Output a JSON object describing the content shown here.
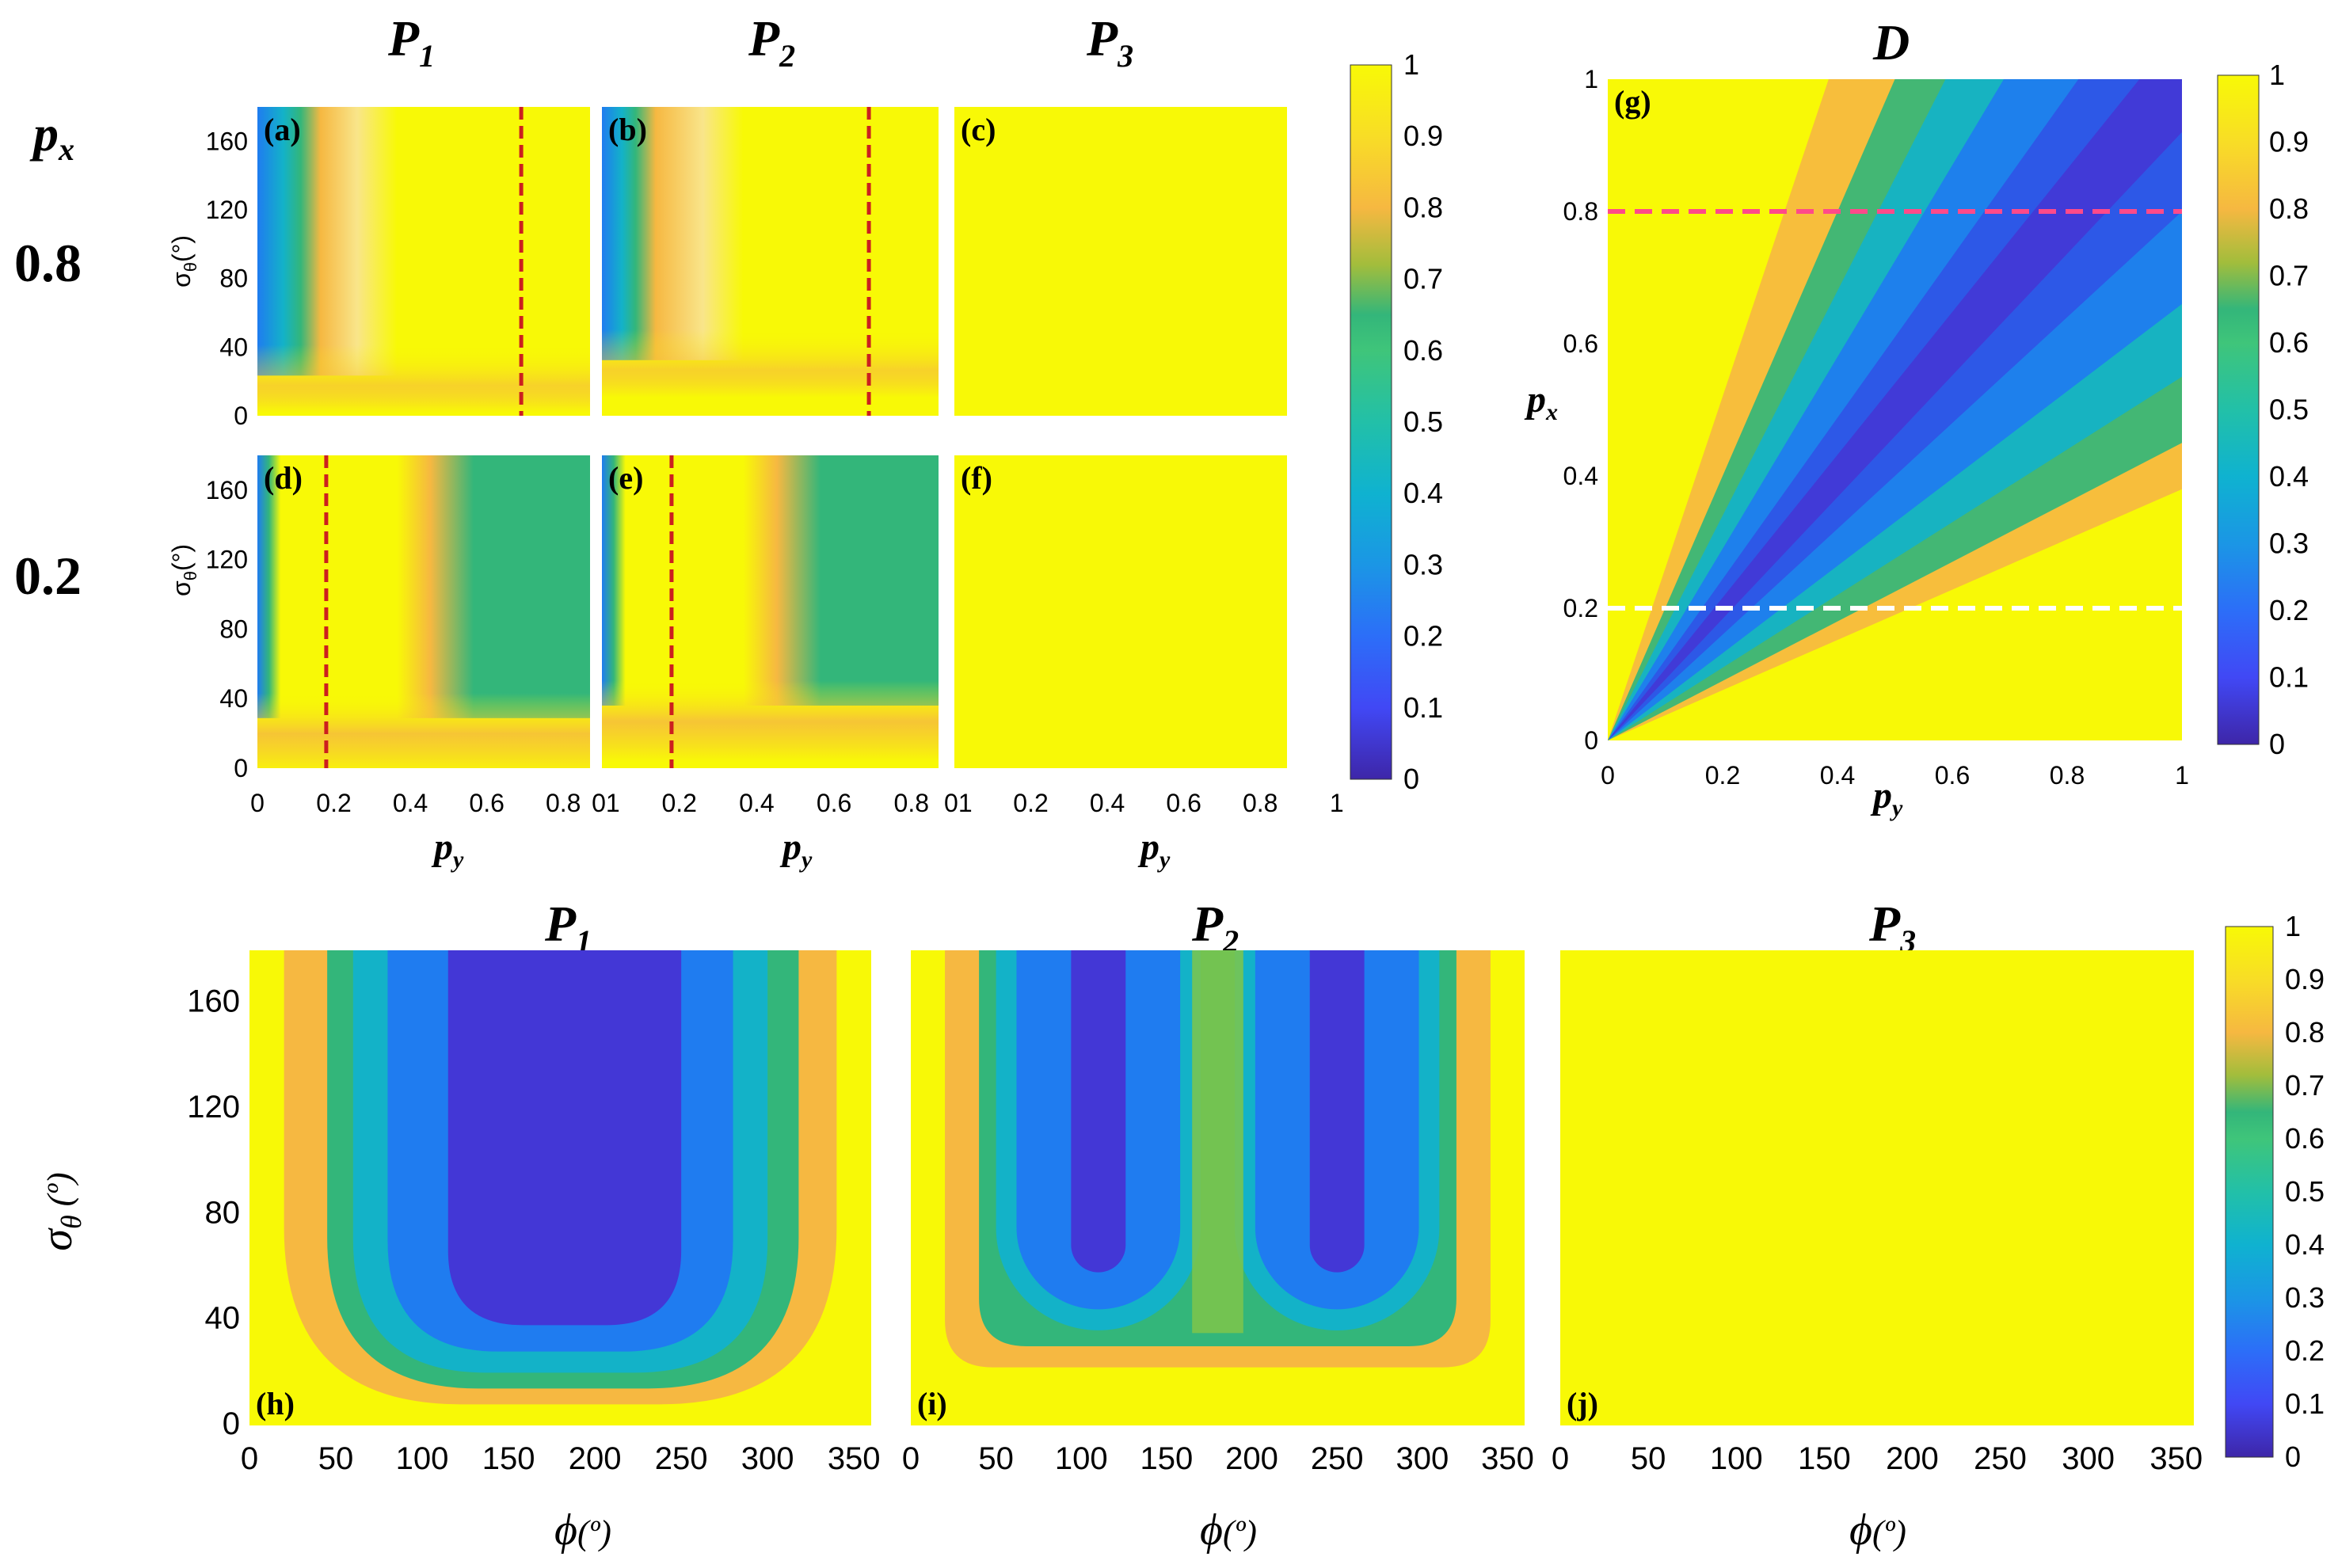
{
  "colors": {
    "yellow": "#f8f906",
    "orange": "#f6b841",
    "green": "#33b67a",
    "cyan": "#13b2c8",
    "blue": "#1f7cf0",
    "indigo": "#4337d6",
    "red_dashed": "#cc1f1f",
    "pink_dashed": "#ff4a8a",
    "white_dashed": "#ffffff"
  },
  "colormap": "parula",
  "top": {
    "col_titles": [
      {
        "letter": "P",
        "sub": "1"
      },
      {
        "letter": "P",
        "sub": "2"
      },
      {
        "letter": "P",
        "sub": "3"
      }
    ],
    "row_header": {
      "letter": "p",
      "sub": "x"
    },
    "rows": [
      {
        "label": "0.8"
      },
      {
        "label": "0.2"
      }
    ],
    "ylabel": {
      "main": "σ",
      "sub": "θ",
      "unit": "(°)"
    },
    "xlabel": {
      "main": "p",
      "sub": "y"
    }
  },
  "bottom": {
    "titles": [
      {
        "letter": "P",
        "sub": "1"
      },
      {
        "letter": "P",
        "sub": "2"
      },
      {
        "letter": "P",
        "sub": "3"
      }
    ],
    "ylabel": {
      "main": "σ",
      "sub": "θ",
      "unit": " (º)"
    },
    "xlabel": {
      "main": "ϕ",
      "unit": "(º)"
    }
  },
  "d_panel": {
    "title": "D",
    "ylabel": {
      "main": "p",
      "sub": "x"
    },
    "xlabel": {
      "main": "p",
      "sub": "y"
    }
  },
  "chart_data": [
    {
      "id": "a",
      "label": "(a)",
      "type": "heatmap",
      "quantity": "P1",
      "px": 0.8,
      "x_ticks": [
        "0",
        "0.2",
        "0.4",
        "0.6",
        "0.8"
      ],
      "xlim": [
        0,
        0.87
      ],
      "y_ticks": [
        "0",
        "40",
        "80",
        "120",
        "160"
      ],
      "ylim": [
        0,
        180
      ],
      "dashed_line": {
        "orientation": "vertical",
        "x": 0.69,
        "color": "red"
      },
      "value_ranges": {
        "min": 0.3,
        "max": 1.0,
        "low_region": "py < 0.07 and sigma > 20"
      }
    },
    {
      "id": "b",
      "label": "(b)",
      "type": "heatmap",
      "quantity": "P2",
      "px": 0.8,
      "x_ticks": [
        "01",
        "0.2",
        "0.4",
        "0.6",
        "0.8"
      ],
      "xlim": [
        0,
        0.87
      ],
      "y_ticks": [
        "0",
        "40",
        "80",
        "120",
        "160"
      ],
      "ylim": [
        0,
        180
      ],
      "dashed_line": {
        "orientation": "vertical",
        "x": 0.69,
        "color": "red"
      },
      "value_ranges": {
        "min": 0.3,
        "max": 1.0,
        "low_region": "py < 0.06 and sigma > 30"
      }
    },
    {
      "id": "c",
      "label": "(c)",
      "type": "heatmap",
      "quantity": "P3",
      "px": 0.8,
      "x_ticks": [
        "01",
        "0.2",
        "0.4",
        "0.6",
        "0.8"
      ],
      "xlim": [
        0,
        0.87
      ],
      "ylim": [
        0,
        180
      ],
      "uniform_value": 1.0
    },
    {
      "id": "d",
      "label": "(d)",
      "type": "heatmap",
      "quantity": "P1",
      "px": 0.2,
      "x_ticks": [
        "0",
        "0.2",
        "0.4",
        "0.6",
        "0.8"
      ],
      "xlim": [
        0,
        0.87
      ],
      "y_ticks": [
        "0",
        "40",
        "80",
        "120",
        "160"
      ],
      "ylim": [
        0,
        180
      ],
      "dashed_line": {
        "orientation": "vertical",
        "x": 0.18,
        "color": "red"
      },
      "value_ranges": {
        "min": 0.45,
        "max": 1.0,
        "plateau": {
          "py_from": 0.6,
          "sigma_from": 30,
          "value": 0.6
        }
      }
    },
    {
      "id": "e",
      "label": "(e)",
      "type": "heatmap",
      "quantity": "P2",
      "px": 0.2,
      "x_ticks": [
        "01",
        "0.2",
        "0.4",
        "0.6",
        "0.8"
      ],
      "xlim": [
        0,
        0.87
      ],
      "ylim": [
        0,
        180
      ],
      "dashed_line": {
        "orientation": "vertical",
        "x": 0.18,
        "color": "red"
      },
      "value_ranges": {
        "min": 0.45,
        "max": 1.0,
        "plateau": {
          "py_from": 0.62,
          "sigma_from": 40,
          "value": 0.6
        }
      }
    },
    {
      "id": "f",
      "label": "(f)",
      "type": "heatmap",
      "quantity": "P3",
      "px": 0.2,
      "x_ticks": [
        "01",
        "0.2",
        "0.4",
        "0.6",
        "0.8",
        "1"
      ],
      "xlim": [
        0,
        0.87
      ],
      "ylim": [
        0,
        180
      ],
      "uniform_value": 1.0
    },
    {
      "id": "g",
      "label": "(g)",
      "type": "heatmap",
      "quantity": "D",
      "title": "D",
      "xlabel": "py",
      "ylabel": "px",
      "x_ticks": [
        "0",
        "0.2",
        "0.4",
        "0.6",
        "0.8",
        "1"
      ],
      "xlim": [
        0,
        1
      ],
      "y_ticks": [
        "0",
        "0.2",
        "0.4",
        "0.6",
        "0.8",
        "1"
      ],
      "ylim": [
        0,
        1
      ],
      "dashed_lines": [
        {
          "orientation": "horizontal",
          "y": 0.8,
          "color": "pink"
        },
        {
          "orientation": "horizontal",
          "y": 0.2,
          "color": "white"
        }
      ],
      "value_ranges": {
        "min": 0.0,
        "max": 1.0,
        "minimum_along": "px = py"
      }
    },
    {
      "id": "h",
      "label": "(h)",
      "type": "heatmap",
      "quantity": "P1",
      "xlabel": "ϕ (º)",
      "ylabel": "σθ (º)",
      "x_ticks": [
        "0",
        "50",
        "100",
        "150",
        "200",
        "250",
        "300",
        "350"
      ],
      "xlim": [
        0,
        360
      ],
      "y_ticks": [
        "0",
        "40",
        "80",
        "120",
        "160"
      ],
      "ylim": [
        0,
        180
      ],
      "value_ranges": {
        "min": 0.05,
        "max": 1.0,
        "minimum_at_phi": 180
      }
    },
    {
      "id": "i",
      "label": "(i)",
      "type": "heatmap",
      "quantity": "P2",
      "xlabel": "ϕ (º)",
      "x_ticks": [
        "0",
        "50",
        "100",
        "150",
        "200",
        "250",
        "300",
        "350"
      ],
      "xlim": [
        0,
        360
      ],
      "ylim": [
        0,
        180
      ],
      "value_ranges": {
        "min": 0.1,
        "max": 1.0,
        "minima_at_phi": [
          110,
          250
        ]
      }
    },
    {
      "id": "j",
      "label": "(j)",
      "type": "heatmap",
      "quantity": "P3",
      "xlabel": "ϕ (º)",
      "x_ticks": [
        "0",
        "50",
        "100",
        "150",
        "200",
        "250",
        "300",
        "350"
      ],
      "xlim": [
        0,
        360
      ],
      "ylim": [
        0,
        180
      ],
      "uniform_value": 1.0
    }
  ],
  "colorbars": [
    {
      "id": "cb-top-left",
      "ticks": [
        "0",
        "0.1",
        "0.2",
        "0.3",
        "0.4",
        "0.5",
        "0.6",
        "0.7",
        "0.8",
        "0.9",
        "1"
      ],
      "range": [
        0,
        1
      ]
    },
    {
      "id": "cb-top-right",
      "ticks": [
        "0",
        "0.1",
        "0.2",
        "0.3",
        "0.4",
        "0.5",
        "0.6",
        "0.7",
        "0.8",
        "0.9",
        "1"
      ],
      "range": [
        0,
        1
      ]
    },
    {
      "id": "cb-bottom",
      "ticks": [
        "0",
        "0.1",
        "0.2",
        "0.3",
        "0.4",
        "0.5",
        "0.6",
        "0.7",
        "0.8",
        "0.9",
        "1"
      ],
      "range": [
        0,
        1
      ]
    }
  ]
}
